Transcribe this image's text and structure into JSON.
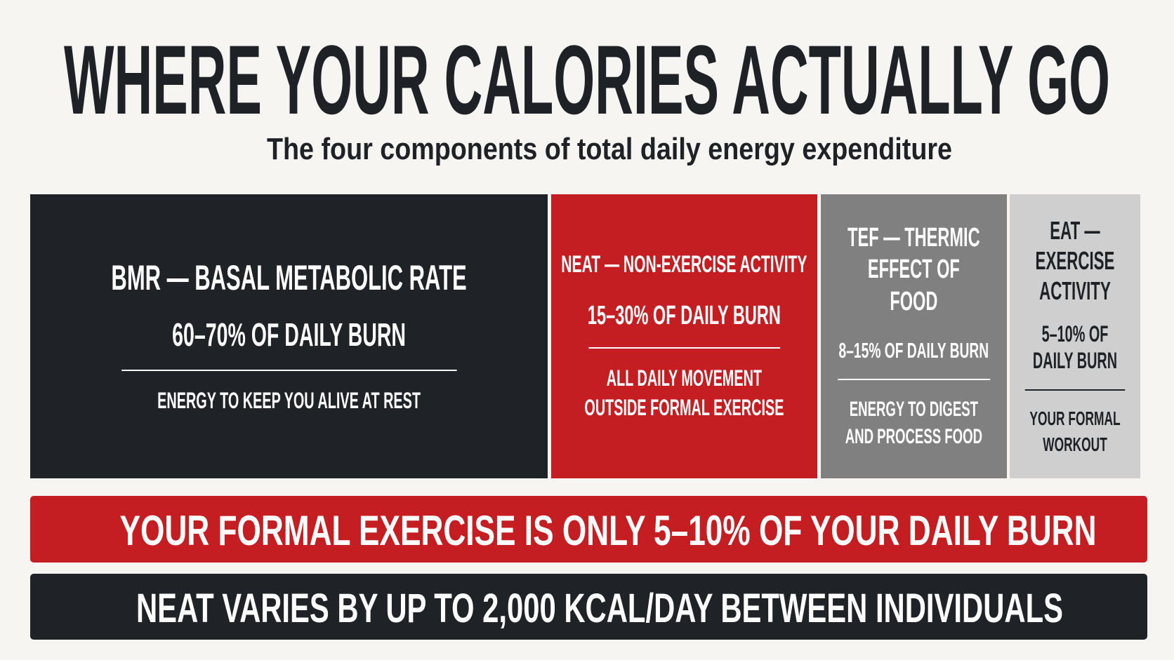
{
  "header": {
    "title": "WHERE YOUR CALORIES ACTUALLY GO",
    "subtitle": "The four components of total daily energy expenditure"
  },
  "blocks": [
    {
      "title": "BMR — BASAL METABOLIC RATE",
      "share": "60–70% OF DAILY BURN",
      "description": "ENERGY TO KEEP YOU ALIVE AT REST"
    },
    {
      "title": "NEAT — NON-EXERCISE ACTIVITY",
      "share": "15–30% OF DAILY BURN",
      "description": "ALL DAILY MOVEMENT OUTSIDE FORMAL EXERCISE"
    },
    {
      "title": "TEF — THERMIC EFFECT OF FOOD",
      "share": "8–15% OF DAILY BURN",
      "description": "ENERGY TO DIGEST AND PROCESS FOOD"
    },
    {
      "title": "EAT — EXERCISE ACTIVITY",
      "share": "5–10% OF DAILY BURN",
      "description": "YOUR FORMAL WORKOUT"
    }
  ],
  "callouts": [
    "YOUR FORMAL EXERCISE IS ONLY 5–10% OF YOUR DAILY BURN",
    "NEAT VARIES BY UP TO 2,000 KCAL/DAY BETWEEN INDIVIDUALS"
  ]
}
